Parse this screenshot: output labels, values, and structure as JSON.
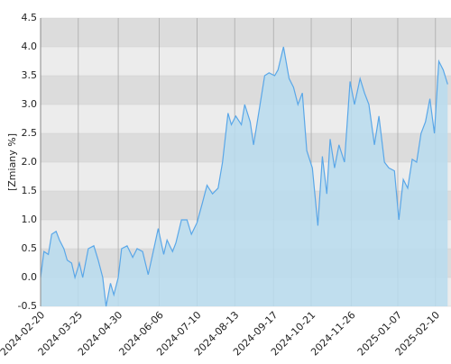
{
  "chart_data": {
    "type": "area",
    "y_label": "[Zmiany %]",
    "x": [
      "2024-02-20",
      "2024-02-23",
      "2024-02-27",
      "2024-03-01",
      "2024-03-05",
      "2024-03-08",
      "2024-03-12",
      "2024-03-15",
      "2024-03-19",
      "2024-03-22",
      "2024-03-26",
      "2024-03-29",
      "2024-04-03",
      "2024-04-08",
      "2024-04-12",
      "2024-04-16",
      "2024-04-19",
      "2024-04-23",
      "2024-04-26",
      "2024-04-30",
      "2024-05-03",
      "2024-05-08",
      "2024-05-13",
      "2024-05-17",
      "2024-05-22",
      "2024-05-27",
      "2024-05-31",
      "2024-06-05",
      "2024-06-10",
      "2024-06-13",
      "2024-06-18",
      "2024-06-21",
      "2024-06-26",
      "2024-07-01",
      "2024-07-05",
      "2024-07-10",
      "2024-07-15",
      "2024-07-19",
      "2024-07-24",
      "2024-07-29",
      "2024-08-02",
      "2024-08-07",
      "2024-08-10",
      "2024-08-14",
      "2024-08-19",
      "2024-08-22",
      "2024-08-27",
      "2024-08-30",
      "2024-09-04",
      "2024-09-09",
      "2024-09-13",
      "2024-09-18",
      "2024-09-21",
      "2024-09-26",
      "2024-10-01",
      "2024-10-05",
      "2024-10-09",
      "2024-10-13",
      "2024-10-17",
      "2024-10-22",
      "2024-10-27",
      "2024-10-31",
      "2024-11-04",
      "2024-11-07",
      "2024-11-11",
      "2024-11-15",
      "2024-11-20",
      "2024-11-25",
      "2024-11-29",
      "2024-12-04",
      "2024-12-08",
      "2024-12-12",
      "2024-12-17",
      "2024-12-21",
      "2024-12-26",
      "2024-12-30",
      "2025-01-04",
      "2025-01-08",
      "2025-01-12",
      "2025-01-16",
      "2025-01-20",
      "2025-01-24",
      "2025-01-28",
      "2025-02-01",
      "2025-02-05",
      "2025-02-09",
      "2025-02-13",
      "2025-02-17",
      "2025-02-21"
    ],
    "values": [
      0.0,
      0.45,
      0.4,
      0.75,
      0.8,
      0.65,
      0.5,
      0.3,
      0.25,
      0.0,
      0.25,
      0.0,
      0.5,
      0.55,
      0.3,
      0.0,
      -0.5,
      -0.1,
      -0.3,
      0.0,
      0.5,
      0.55,
      0.35,
      0.5,
      0.45,
      0.05,
      0.4,
      0.85,
      0.4,
      0.65,
      0.45,
      0.6,
      1.0,
      1.0,
      0.75,
      0.95,
      1.3,
      1.6,
      1.45,
      1.55,
      2.0,
      2.85,
      2.65,
      2.8,
      2.65,
      3.0,
      2.7,
      2.3,
      2.9,
      3.5,
      3.55,
      3.5,
      3.6,
      4.0,
      3.45,
      3.3,
      3.0,
      3.2,
      2.2,
      1.9,
      0.9,
      2.1,
      1.45,
      2.4,
      1.9,
      2.3,
      2.0,
      3.4,
      3.0,
      3.45,
      3.2,
      3.0,
      2.3,
      2.8,
      2.0,
      1.9,
      1.85,
      1.0,
      1.7,
      1.55,
      2.05,
      2.0,
      2.5,
      2.7,
      3.1,
      2.5,
      3.75,
      3.6,
      3.35
    ],
    "color": "#5aa7e8",
    "fill": "#b8dcee",
    "xlim": [
      "2024-02-20",
      "2025-02-24"
    ],
    "xticks": [
      "2024-02-20",
      "2024-03-25",
      "2024-04-30",
      "2024-06-06",
      "2024-07-10",
      "2024-08-13",
      "2024-09-17",
      "2024-10-21",
      "2024-11-26",
      "2025-01-07",
      "2025-02-10"
    ],
    "ylim": [
      -0.5,
      4.5
    ],
    "yticks": [
      -0.5,
      {
        "value": 0,
        "label": "0.0"
      },
      0.5,
      {
        "value": 1,
        "label": "1.0"
      },
      1.5,
      {
        "value": 2,
        "label": "2.0"
      },
      2.5,
      {
        "value": 3,
        "label": "3.0"
      },
      3.5,
      {
        "value": 4,
        "label": "4.0"
      },
      4.5
    ],
    "grid": true
  }
}
